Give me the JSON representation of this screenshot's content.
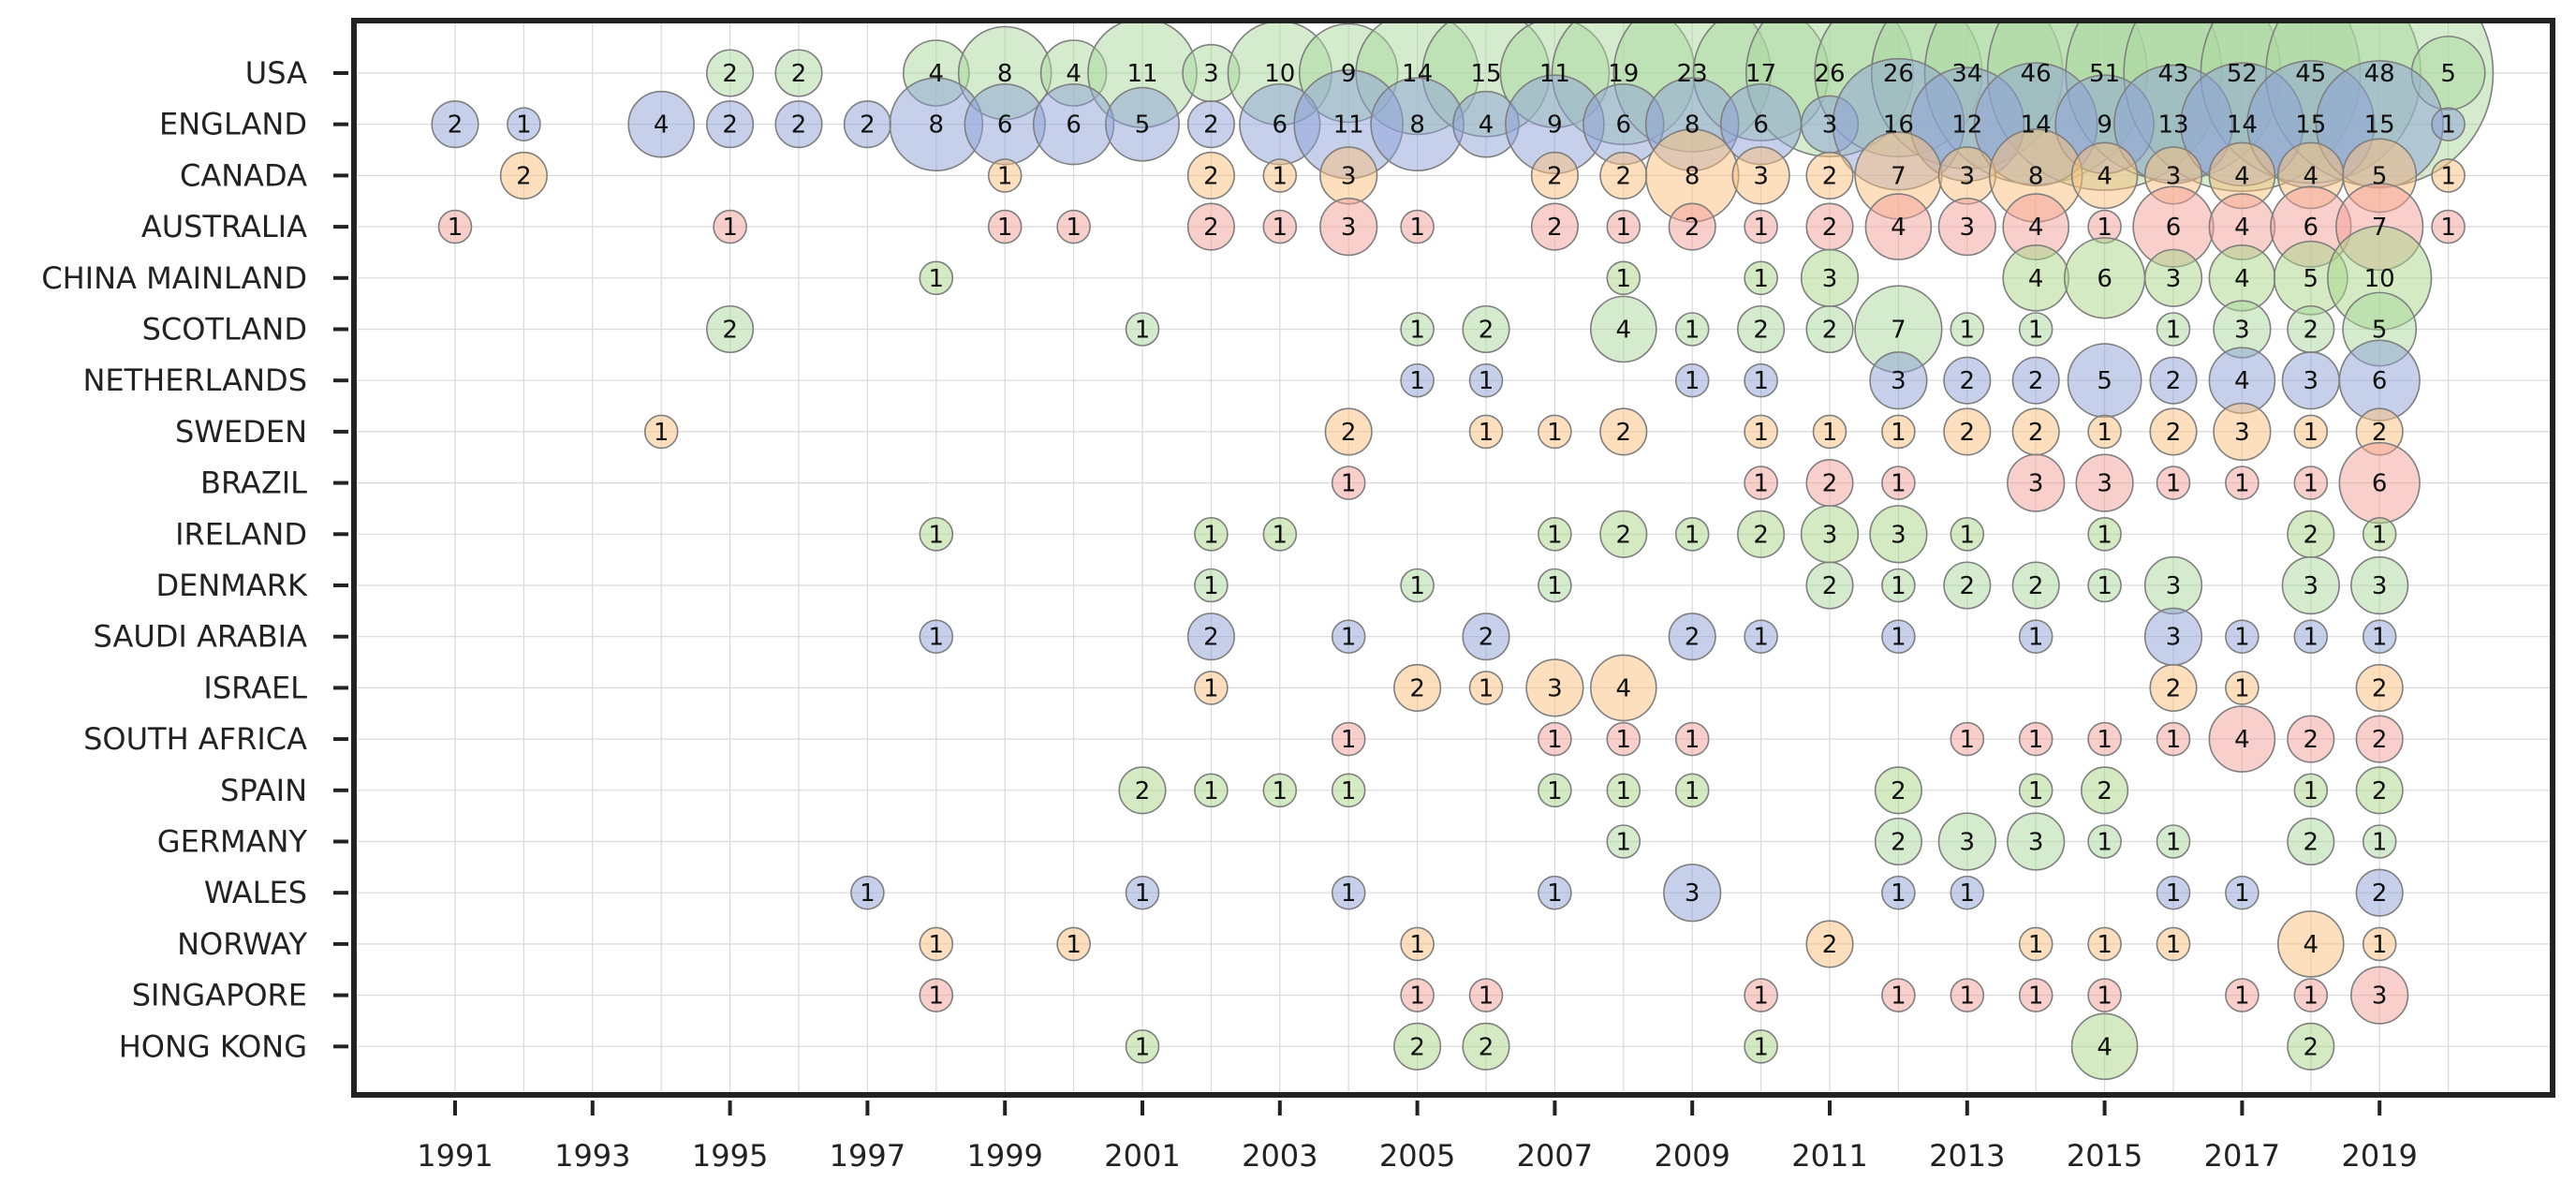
{
  "chart_data": {
    "type": "scatter",
    "subtype": "bubble",
    "title": "",
    "xlabel": "",
    "ylabel": "",
    "grid": true,
    "x_range": [
      1990,
      2021
    ],
    "x_ticks": [
      1991,
      1993,
      1995,
      1997,
      1999,
      2001,
      2003,
      2005,
      2007,
      2009,
      2011,
      2013,
      2015,
      2017,
      2019
    ],
    "x_tick_labels": [
      "1991",
      "1993",
      "1995",
      "1997",
      "1999",
      "2001",
      "2003",
      "2005",
      "2007",
      "2009",
      "2011",
      "2013",
      "2015",
      "2017",
      "2019"
    ],
    "palette": [
      "#8ea2d8",
      "#fcc07e",
      "#f3a09a",
      "#a8d588",
      "#a9d79d"
    ],
    "series": [
      {
        "name": "USA",
        "color": "#a9d79d",
        "points": [
          [
            1995,
            2
          ],
          [
            1996,
            2
          ],
          [
            1998,
            4
          ],
          [
            1999,
            8
          ],
          [
            2000,
            4
          ],
          [
            2001,
            11
          ],
          [
            2002,
            3
          ],
          [
            2003,
            10
          ],
          [
            2004,
            9
          ],
          [
            2005,
            14
          ],
          [
            2006,
            15
          ],
          [
            2007,
            11
          ],
          [
            2008,
            19
          ],
          [
            2009,
            23
          ],
          [
            2010,
            17
          ],
          [
            2011,
            26
          ],
          [
            2012,
            26
          ],
          [
            2013,
            34
          ],
          [
            2014,
            46
          ],
          [
            2015,
            51
          ],
          [
            2016,
            43
          ],
          [
            2017,
            52
          ],
          [
            2018,
            45
          ],
          [
            2019,
            48
          ],
          [
            2020,
            5
          ]
        ]
      },
      {
        "name": "ENGLAND",
        "color": "#8ea2d8",
        "points": [
          [
            1991,
            2
          ],
          [
            1992,
            1
          ],
          [
            1994,
            4
          ],
          [
            1995,
            2
          ],
          [
            1996,
            2
          ],
          [
            1997,
            2
          ],
          [
            1998,
            8
          ],
          [
            1999,
            6
          ],
          [
            2000,
            6
          ],
          [
            2001,
            5
          ],
          [
            2002,
            2
          ],
          [
            2003,
            6
          ],
          [
            2004,
            11
          ],
          [
            2005,
            8
          ],
          [
            2006,
            4
          ],
          [
            2007,
            9
          ],
          [
            2008,
            6
          ],
          [
            2009,
            8
          ],
          [
            2010,
            6
          ],
          [
            2011,
            3
          ],
          [
            2012,
            16
          ],
          [
            2013,
            12
          ],
          [
            2014,
            14
          ],
          [
            2015,
            9
          ],
          [
            2016,
            13
          ],
          [
            2017,
            14
          ],
          [
            2018,
            15
          ],
          [
            2019,
            15
          ],
          [
            2020,
            1
          ]
        ]
      },
      {
        "name": "CANADA",
        "color": "#fcc07e",
        "points": [
          [
            1992,
            2
          ],
          [
            1999,
            1
          ],
          [
            2002,
            2
          ],
          [
            2003,
            1
          ],
          [
            2004,
            3
          ],
          [
            2007,
            2
          ],
          [
            2008,
            2
          ],
          [
            2009,
            8
          ],
          [
            2010,
            3
          ],
          [
            2011,
            2
          ],
          [
            2012,
            7
          ],
          [
            2013,
            3
          ],
          [
            2014,
            8
          ],
          [
            2015,
            4
          ],
          [
            2016,
            3
          ],
          [
            2017,
            4
          ],
          [
            2018,
            4
          ],
          [
            2019,
            5
          ],
          [
            2020,
            1
          ]
        ]
      },
      {
        "name": "AUSTRALIA",
        "color": "#f3a09a",
        "points": [
          [
            1991,
            1
          ],
          [
            1995,
            1
          ],
          [
            1999,
            1
          ],
          [
            2000,
            1
          ],
          [
            2002,
            2
          ],
          [
            2003,
            1
          ],
          [
            2004,
            3
          ],
          [
            2005,
            1
          ],
          [
            2007,
            2
          ],
          [
            2008,
            1
          ],
          [
            2009,
            2
          ],
          [
            2010,
            1
          ],
          [
            2011,
            2
          ],
          [
            2012,
            4
          ],
          [
            2013,
            3
          ],
          [
            2014,
            4
          ],
          [
            2015,
            1
          ],
          [
            2016,
            6
          ],
          [
            2017,
            4
          ],
          [
            2018,
            6
          ],
          [
            2019,
            7
          ],
          [
            2020,
            1
          ]
        ]
      },
      {
        "name": "CHINA MAINLAND",
        "color": "#a8d588",
        "points": [
          [
            1998,
            1
          ],
          [
            2008,
            1
          ],
          [
            2010,
            1
          ],
          [
            2011,
            3
          ],
          [
            2014,
            4
          ],
          [
            2015,
            6
          ],
          [
            2016,
            3
          ],
          [
            2017,
            4
          ],
          [
            2018,
            5
          ],
          [
            2019,
            10
          ]
        ]
      },
      {
        "name": "SCOTLAND",
        "color": "#a9d79d",
        "points": [
          [
            1995,
            2
          ],
          [
            2001,
            1
          ],
          [
            2005,
            1
          ],
          [
            2006,
            2
          ],
          [
            2008,
            4
          ],
          [
            2009,
            1
          ],
          [
            2010,
            2
          ],
          [
            2011,
            2
          ],
          [
            2012,
            7
          ],
          [
            2013,
            1
          ],
          [
            2014,
            1
          ],
          [
            2016,
            1
          ],
          [
            2017,
            3
          ],
          [
            2018,
            2
          ],
          [
            2019,
            5
          ]
        ]
      },
      {
        "name": "NETHERLANDS",
        "color": "#8ea2d8",
        "points": [
          [
            2005,
            1
          ],
          [
            2006,
            1
          ],
          [
            2009,
            1
          ],
          [
            2010,
            1
          ],
          [
            2012,
            3
          ],
          [
            2013,
            2
          ],
          [
            2014,
            2
          ],
          [
            2015,
            5
          ],
          [
            2016,
            2
          ],
          [
            2017,
            4
          ],
          [
            2018,
            3
          ],
          [
            2019,
            6
          ]
        ]
      },
      {
        "name": "SWEDEN",
        "color": "#fcc07e",
        "points": [
          [
            1994,
            1
          ],
          [
            2004,
            2
          ],
          [
            2006,
            1
          ],
          [
            2007,
            1
          ],
          [
            2008,
            2
          ],
          [
            2010,
            1
          ],
          [
            2011,
            1
          ],
          [
            2012,
            1
          ],
          [
            2013,
            2
          ],
          [
            2014,
            2
          ],
          [
            2015,
            1
          ],
          [
            2016,
            2
          ],
          [
            2017,
            3
          ],
          [
            2018,
            1
          ],
          [
            2019,
            2
          ]
        ]
      },
      {
        "name": "BRAZIL",
        "color": "#f3a09a",
        "points": [
          [
            2004,
            1
          ],
          [
            2010,
            1
          ],
          [
            2011,
            2
          ],
          [
            2012,
            1
          ],
          [
            2014,
            3
          ],
          [
            2015,
            3
          ],
          [
            2016,
            1
          ],
          [
            2017,
            1
          ],
          [
            2018,
            1
          ],
          [
            2019,
            6
          ]
        ]
      },
      {
        "name": "IRELAND",
        "color": "#a8d588",
        "points": [
          [
            1998,
            1
          ],
          [
            2002,
            1
          ],
          [
            2003,
            1
          ],
          [
            2007,
            1
          ],
          [
            2008,
            2
          ],
          [
            2009,
            1
          ],
          [
            2010,
            2
          ],
          [
            2011,
            3
          ],
          [
            2012,
            3
          ],
          [
            2013,
            1
          ],
          [
            2015,
            1
          ],
          [
            2018,
            2
          ],
          [
            2019,
            1
          ]
        ]
      },
      {
        "name": "DENMARK",
        "color": "#a9d79d",
        "points": [
          [
            2002,
            1
          ],
          [
            2005,
            1
          ],
          [
            2007,
            1
          ],
          [
            2011,
            2
          ],
          [
            2012,
            1
          ],
          [
            2013,
            2
          ],
          [
            2014,
            2
          ],
          [
            2015,
            1
          ],
          [
            2016,
            3
          ],
          [
            2018,
            3
          ],
          [
            2019,
            3
          ]
        ]
      },
      {
        "name": "SAUDI ARABIA",
        "color": "#8ea2d8",
        "points": [
          [
            1998,
            1
          ],
          [
            2002,
            2
          ],
          [
            2004,
            1
          ],
          [
            2006,
            2
          ],
          [
            2009,
            2
          ],
          [
            2010,
            1
          ],
          [
            2012,
            1
          ],
          [
            2014,
            1
          ],
          [
            2016,
            3
          ],
          [
            2017,
            1
          ],
          [
            2018,
            1
          ],
          [
            2019,
            1
          ]
        ]
      },
      {
        "name": "ISRAEL",
        "color": "#fcc07e",
        "points": [
          [
            2002,
            1
          ],
          [
            2005,
            2
          ],
          [
            2006,
            1
          ],
          [
            2007,
            3
          ],
          [
            2008,
            4
          ],
          [
            2016,
            2
          ],
          [
            2017,
            1
          ],
          [
            2019,
            2
          ]
        ]
      },
      {
        "name": "SOUTH AFRICA",
        "color": "#f3a09a",
        "points": [
          [
            2004,
            1
          ],
          [
            2007,
            1
          ],
          [
            2008,
            1
          ],
          [
            2009,
            1
          ],
          [
            2013,
            1
          ],
          [
            2014,
            1
          ],
          [
            2015,
            1
          ],
          [
            2016,
            1
          ],
          [
            2017,
            4
          ],
          [
            2018,
            2
          ],
          [
            2019,
            2
          ]
        ]
      },
      {
        "name": "SPAIN",
        "color": "#a8d588",
        "points": [
          [
            2001,
            2
          ],
          [
            2002,
            1
          ],
          [
            2003,
            1
          ],
          [
            2004,
            1
          ],
          [
            2007,
            1
          ],
          [
            2008,
            1
          ],
          [
            2009,
            1
          ],
          [
            2012,
            2
          ],
          [
            2014,
            1
          ],
          [
            2015,
            2
          ],
          [
            2018,
            1
          ],
          [
            2019,
            2
          ]
        ]
      },
      {
        "name": "GERMANY",
        "color": "#a9d79d",
        "points": [
          [
            2008,
            1
          ],
          [
            2012,
            2
          ],
          [
            2013,
            3
          ],
          [
            2014,
            3
          ],
          [
            2015,
            1
          ],
          [
            2016,
            1
          ],
          [
            2018,
            2
          ],
          [
            2019,
            1
          ]
        ]
      },
      {
        "name": "WALES",
        "color": "#8ea2d8",
        "points": [
          [
            1997,
            1
          ],
          [
            2001,
            1
          ],
          [
            2004,
            1
          ],
          [
            2007,
            1
          ],
          [
            2009,
            3
          ],
          [
            2012,
            1
          ],
          [
            2013,
            1
          ],
          [
            2016,
            1
          ],
          [
            2017,
            1
          ],
          [
            2019,
            2
          ]
        ]
      },
      {
        "name": "NORWAY",
        "color": "#fcc07e",
        "points": [
          [
            1998,
            1
          ],
          [
            2000,
            1
          ],
          [
            2005,
            1
          ],
          [
            2011,
            2
          ],
          [
            2014,
            1
          ],
          [
            2015,
            1
          ],
          [
            2016,
            1
          ],
          [
            2018,
            4
          ],
          [
            2019,
            1
          ]
        ]
      },
      {
        "name": "SINGAPORE",
        "color": "#f3a09a",
        "points": [
          [
            1998,
            1
          ],
          [
            2005,
            1
          ],
          [
            2006,
            1
          ],
          [
            2010,
            1
          ],
          [
            2012,
            1
          ],
          [
            2013,
            1
          ],
          [
            2014,
            1
          ],
          [
            2015,
            1
          ],
          [
            2017,
            1
          ],
          [
            2018,
            1
          ],
          [
            2019,
            3
          ]
        ]
      },
      {
        "name": "HONG KONG",
        "color": "#a8d588",
        "points": [
          [
            2001,
            1
          ],
          [
            2005,
            2
          ],
          [
            2006,
            2
          ],
          [
            2010,
            1
          ],
          [
            2015,
            4
          ],
          [
            2018,
            2
          ]
        ]
      }
    ]
  }
}
